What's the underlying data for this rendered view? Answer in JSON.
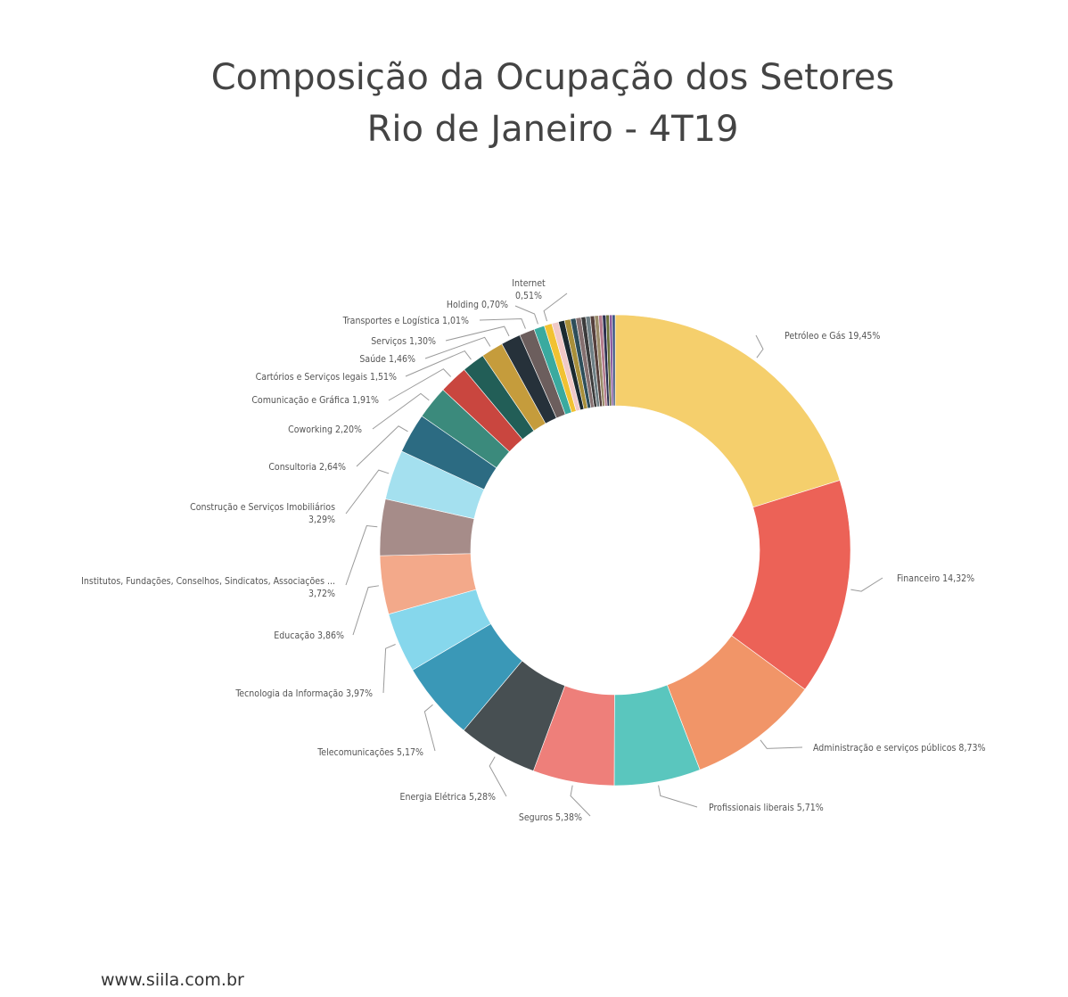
{
  "title_line1": "Composição da Ocupação dos Setores",
  "title_line2": "Rio de Janeiro - 4T19",
  "footer": "www.siila.com.br",
  "chart_data": {
    "type": "donut",
    "title": "Composição da Ocupação dos Setores Rio de Janeiro - 4T19",
    "unit": "%",
    "slices": [
      {
        "label": "Petróleo e Gás",
        "value": 19.45,
        "color": "#f5cf6c"
      },
      {
        "label": "Financeiro",
        "value": 14.32,
        "color": "#ec6257"
      },
      {
        "label": "Administração e serviços públicos",
        "value": 8.73,
        "color": "#f19568"
      },
      {
        "label": "Profissionais liberais",
        "value": 5.71,
        "color": "#5ac6be"
      },
      {
        "label": "Seguros",
        "value": 5.38,
        "color": "#ee7f7a"
      },
      {
        "label": "Energia Elétrica",
        "value": 5.28,
        "color": "#474f52"
      },
      {
        "label": "Telecomunicações",
        "value": 5.17,
        "color": "#3a98b7"
      },
      {
        "label": "Tecnologia da Informação",
        "value": 3.97,
        "color": "#86d7ec"
      },
      {
        "label": "Educação",
        "value": 3.86,
        "color": "#f3a98a"
      },
      {
        "label": "Institutos, Fundações, Conselhos, Sindicatos, Associações ...",
        "value": 3.72,
        "color": "#a68c89"
      },
      {
        "label": "Construção e Serviços Imobiliários",
        "value": 3.29,
        "color": "#a4e0ef"
      },
      {
        "label": "Consultoria",
        "value": 2.64,
        "color": "#2c6b82"
      },
      {
        "label": "Coworking",
        "value": 2.2,
        "color": "#3b8a7c"
      },
      {
        "label": "Comunicação e Gráfica",
        "value": 1.91,
        "color": "#c9463f"
      },
      {
        "label": "Cartórios e Serviços legais",
        "value": 1.51,
        "color": "#225e57"
      },
      {
        "label": "Saúde",
        "value": 1.46,
        "color": "#c59c3c"
      },
      {
        "label": "Serviços",
        "value": 1.3,
        "color": "#26313a"
      },
      {
        "label": "Transportes e Logística",
        "value": 1.01,
        "color": "#6c5e5d"
      },
      {
        "label": "Holding",
        "value": 0.7,
        "color": "#3aaa9f"
      },
      {
        "label": "Internet",
        "value": 0.51,
        "color": "#f1c232"
      }
    ],
    "other_slices_colors": [
      "#f0c9c7",
      "#1b2a30",
      "#a88f3a",
      "#2d4e5a",
      "#857070",
      "#3b3b3b",
      "#6e7f84",
      "#55403c",
      "#9a8c6a",
      "#b47c8e",
      "#2b2f4f",
      "#6b6f3a",
      "#8c5a9e",
      "#2e4a78"
    ],
    "other_slices_values": [
      0.45,
      0.4,
      0.4,
      0.35,
      0.35,
      0.3,
      0.3,
      0.28,
      0.27,
      0.25,
      0.23,
      0.22,
      0.2,
      0.18
    ]
  }
}
